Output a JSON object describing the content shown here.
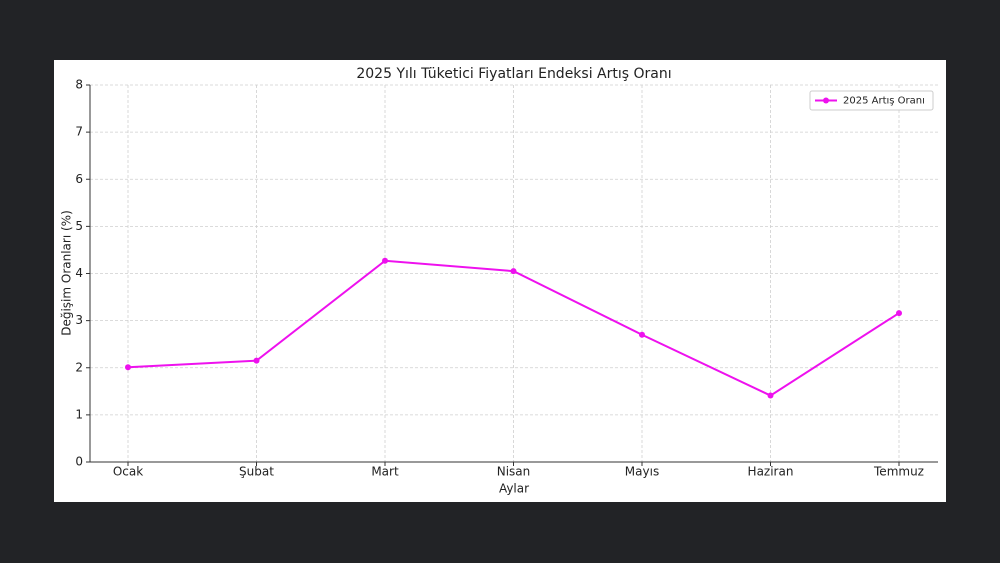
{
  "chart_data": {
    "type": "line",
    "title": "2025 Yılı Tüketici Fiyatları Endeksi Artış Oranı",
    "x_label": "Aylar",
    "y_label": "Değişim Oranları (%)",
    "categories": [
      "Ocak",
      "Şubat",
      "Mart",
      "Nisan",
      "Mayıs",
      "Haziran",
      "Temmuz"
    ],
    "series": [
      {
        "name": "2025 Artış Oranı",
        "color": "#ee11ee",
        "values": [
          2.01,
          2.15,
          4.27,
          4.05,
          2.7,
          1.41,
          3.16
        ]
      }
    ],
    "ylim": [
      0,
      8
    ],
    "yticks": [
      0,
      1,
      2,
      3,
      4,
      5,
      6,
      7,
      8
    ],
    "grid": true,
    "legend": "upper right"
  }
}
